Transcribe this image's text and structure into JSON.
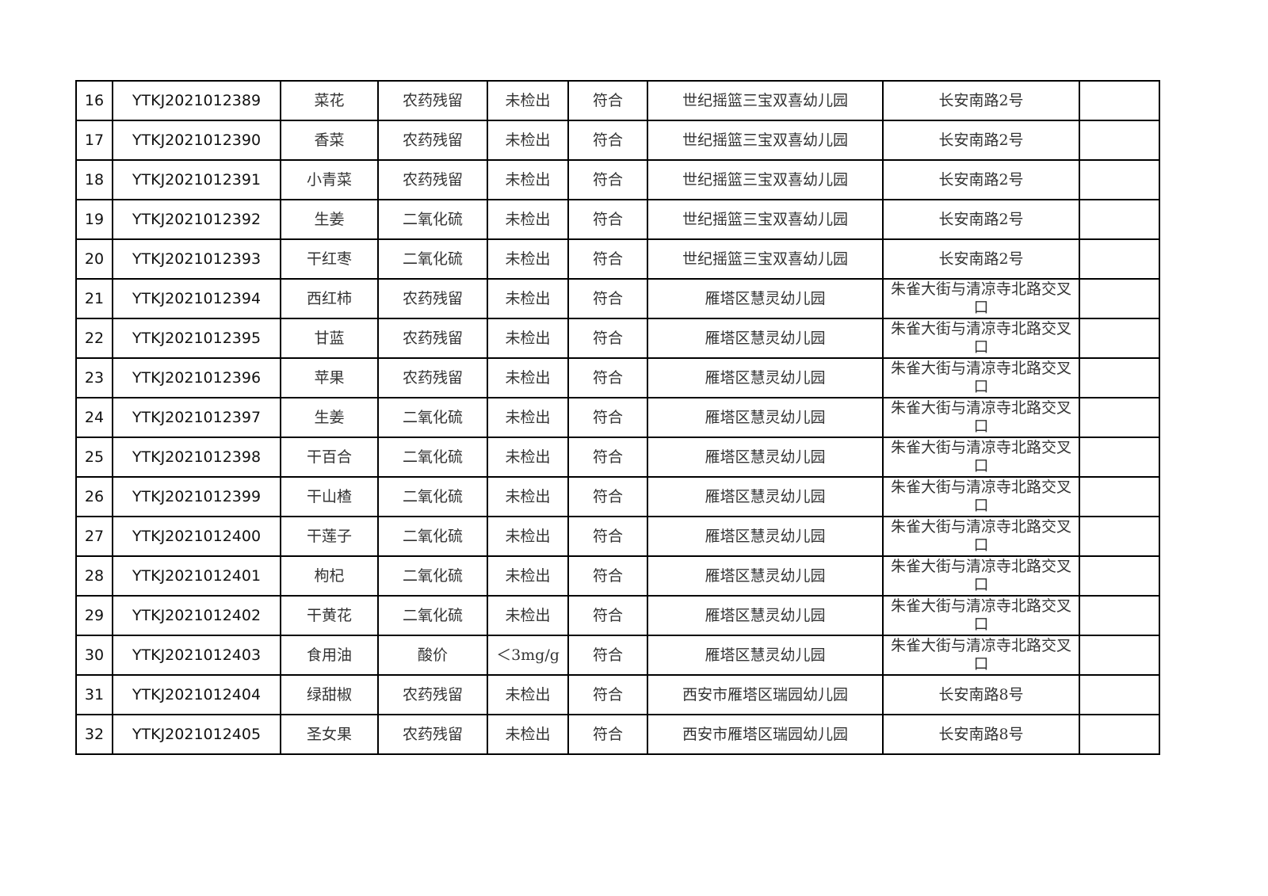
{
  "table": {
    "rows": [
      [
        "16",
        "YTKJ2021012389",
        "菜花",
        "农药残留",
        "未检出",
        "符合",
        "世纪摇篮三宝双喜幼儿园",
        "长安南路2号",
        ""
      ],
      [
        "17",
        "YTKJ2021012390",
        "香菜",
        "农药残留",
        "未检出",
        "符合",
        "世纪摇篮三宝双喜幼儿园",
        "长安南路2号",
        ""
      ],
      [
        "18",
        "YTKJ2021012391",
        "小青菜",
        "农药残留",
        "未检出",
        "符合",
        "世纪摇篮三宝双喜幼儿园",
        "长安南路2号",
        ""
      ],
      [
        "19",
        "YTKJ2021012392",
        "生姜",
        "二氧化硫",
        "未检出",
        "符合",
        "世纪摇篮三宝双喜幼儿园",
        "长安南路2号",
        ""
      ],
      [
        "20",
        "YTKJ2021012393",
        "干红枣",
        "二氧化硫",
        "未检出",
        "符合",
        "世纪摇篮三宝双喜幼儿园",
        "长安南路2号",
        ""
      ],
      [
        "21",
        "YTKJ2021012394",
        "西红柿",
        "农药残留",
        "未检出",
        "符合",
        "雁塔区慧灵幼儿园",
        "朱雀大街与清凉寺北路交叉口",
        ""
      ],
      [
        "22",
        "YTKJ2021012395",
        "甘蓝",
        "农药残留",
        "未检出",
        "符合",
        "雁塔区慧灵幼儿园",
        "朱雀大街与清凉寺北路交叉口",
        ""
      ],
      [
        "23",
        "YTKJ2021012396",
        "苹果",
        "农药残留",
        "未检出",
        "符合",
        "雁塔区慧灵幼儿园",
        "朱雀大街与清凉寺北路交叉口",
        ""
      ],
      [
        "24",
        "YTKJ2021012397",
        "生姜",
        "二氧化硫",
        "未检出",
        "符合",
        "雁塔区慧灵幼儿园",
        "朱雀大街与清凉寺北路交叉口",
        ""
      ],
      [
        "25",
        "YTKJ2021012398",
        "干百合",
        "二氧化硫",
        "未检出",
        "符合",
        "雁塔区慧灵幼儿园",
        "朱雀大街与清凉寺北路交叉口",
        ""
      ],
      [
        "26",
        "YTKJ2021012399",
        "干山楂",
        "二氧化硫",
        "未检出",
        "符合",
        "雁塔区慧灵幼儿园",
        "朱雀大街与清凉寺北路交叉口",
        ""
      ],
      [
        "27",
        "YTKJ2021012400",
        "干莲子",
        "二氧化硫",
        "未检出",
        "符合",
        "雁塔区慧灵幼儿园",
        "朱雀大街与清凉寺北路交叉口",
        ""
      ],
      [
        "28",
        "YTKJ2021012401",
        "枸杞",
        "二氧化硫",
        "未检出",
        "符合",
        "雁塔区慧灵幼儿园",
        "朱雀大街与清凉寺北路交叉口",
        ""
      ],
      [
        "29",
        "YTKJ2021012402",
        "干黄花",
        "二氧化硫",
        "未检出",
        "符合",
        "雁塔区慧灵幼儿园",
        "朱雀大街与清凉寺北路交叉口",
        ""
      ],
      [
        "30",
        "YTKJ2021012403",
        "食用油",
        "酸价",
        "＜3mg/g",
        "符合",
        "雁塔区慧灵幼儿园",
        "朱雀大街与清凉寺北路交叉口",
        ""
      ],
      [
        "31",
        "YTKJ2021012404",
        "绿甜椒",
        "农药残留",
        "未检出",
        "符合",
        "西安市雁塔区瑞园幼儿园",
        "长安南路8号",
        ""
      ],
      [
        "32",
        "YTKJ2021012405",
        "圣女果",
        "农药残留",
        "未检出",
        "符合",
        "西安市雁塔区瑞园幼儿园",
        "长安南路8号",
        ""
      ]
    ]
  }
}
